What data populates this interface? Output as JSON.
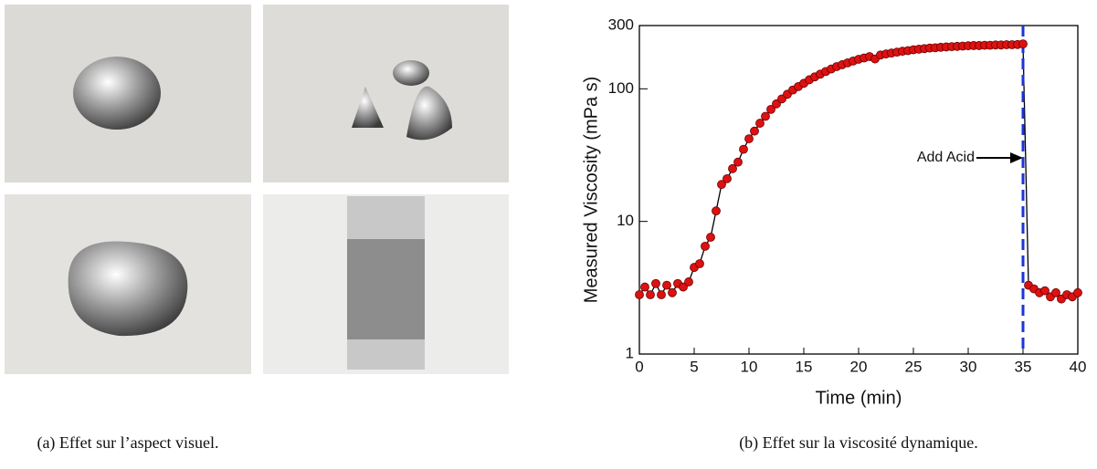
{
  "chart_data": {
    "type": "line-scatter",
    "xlabel": "Time (min)",
    "ylabel": "Measured Viscosity (mPa s)",
    "x": [
      0,
      0.5,
      1,
      1.5,
      2,
      2.5,
      3,
      3.5,
      4,
      4.5,
      5,
      5.5,
      6,
      6.5,
      7,
      7.5,
      8,
      8.5,
      9,
      9.5,
      10,
      10.5,
      11,
      11.5,
      12,
      12.5,
      13,
      13.5,
      14,
      14.5,
      15,
      15.5,
      16,
      16.5,
      17,
      17.5,
      18,
      18.5,
      19,
      19.5,
      20,
      20.5,
      21,
      21.5,
      22,
      22.5,
      23,
      23.5,
      24,
      24.5,
      25,
      25.5,
      26,
      26.5,
      27,
      27.5,
      28,
      28.5,
      29,
      29.5,
      30,
      30.5,
      31,
      31.5,
      32,
      32.5,
      33,
      33.5,
      34,
      34.5,
      35,
      35.5,
      36,
      36.5,
      37,
      37.5,
      38,
      38.5,
      39,
      39.5,
      40
    ],
    "values": [
      2.8,
      3.2,
      2.8,
      3.4,
      2.8,
      3.3,
      2.9,
      3.4,
      3.2,
      3.5,
      4.5,
      4.8,
      6.5,
      7.6,
      12,
      19,
      21,
      25,
      28,
      35,
      42,
      48,
      55,
      62,
      70,
      77,
      84,
      91,
      98,
      104,
      110,
      117,
      123,
      129,
      135,
      141,
      147,
      152,
      157,
      162,
      167,
      171,
      175,
      168,
      180,
      183,
      186,
      189,
      192,
      194,
      197,
      199,
      201,
      203,
      204,
      206,
      207,
      208,
      209,
      210,
      211,
      212,
      212,
      213,
      213,
      214,
      214,
      215,
      215,
      216,
      218,
      3.3,
      3.1,
      2.9,
      3.0,
      2.7,
      2.9,
      2.6,
      2.8,
      2.7,
      2.9
    ],
    "color": "#dd1111",
    "line_color": "#000000",
    "xlim": [
      0,
      40
    ],
    "xticks": [
      0,
      5,
      10,
      15,
      20,
      25,
      30,
      35,
      40
    ],
    "ylim": [
      1,
      300
    ],
    "yticks": [
      1,
      10,
      100,
      300
    ],
    "log_y": true,
    "vline": {
      "x": 35,
      "color": "#1a35d6"
    },
    "annotation": "Add Acid"
  },
  "captions": [
    "(a) Effet sur l’aspect visuel.",
    "(b) Effet sur la viscosité dynamique."
  ]
}
